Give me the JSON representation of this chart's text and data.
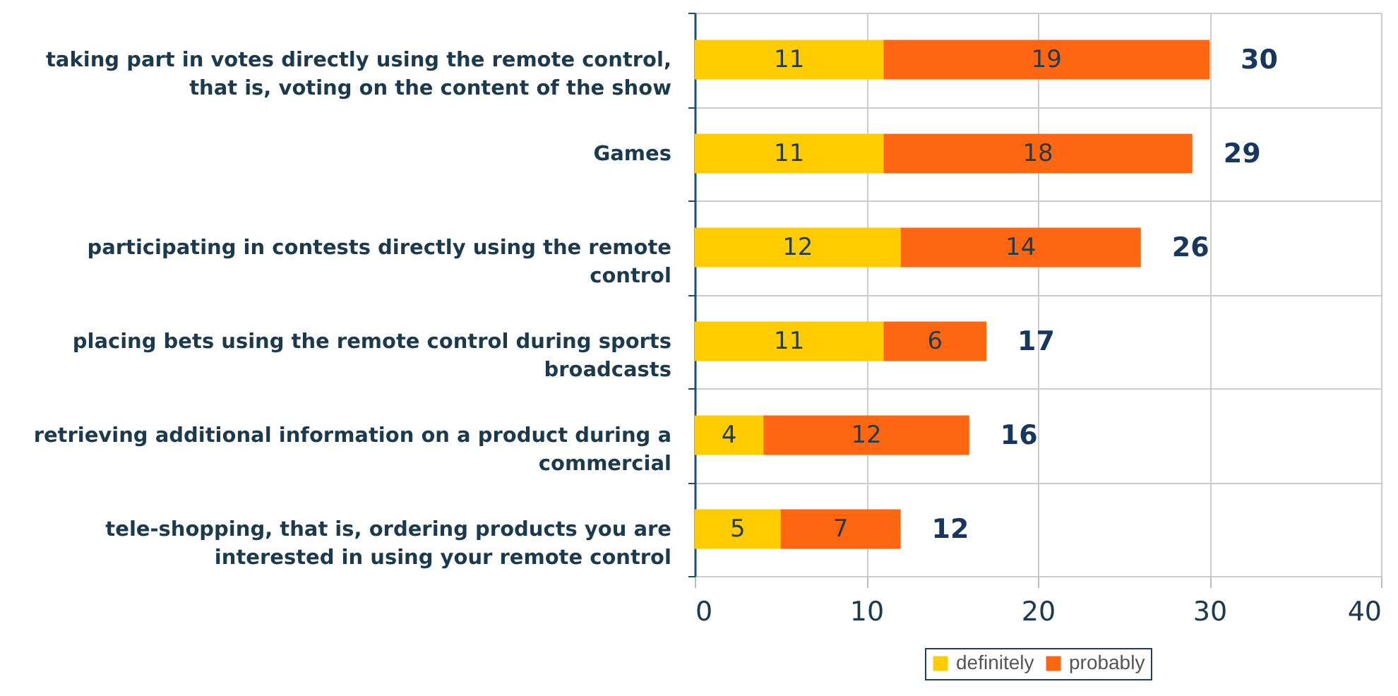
{
  "chart_data": {
    "type": "bar",
    "orientation": "horizontal",
    "stacked": true,
    "categories": [
      "taking part in votes directly using the remote control, that is, voting on the content of the show",
      "Games",
      "participating in contests directly using the remote control",
      "placing bets using the remote control during sports broadcasts",
      "retrieving additional information on a product during a commercial",
      "tele-shopping, that is, ordering products you are interested in using your remote control"
    ],
    "series": [
      {
        "name": "definitely",
        "color": "#ffcc00",
        "values": [
          11,
          11,
          12,
          11,
          4,
          5
        ]
      },
      {
        "name": "probably",
        "color": "#ff6611",
        "values": [
          19,
          18,
          14,
          6,
          12,
          7
        ]
      }
    ],
    "xlim": [
      0,
      40
    ],
    "xticks": [
      0,
      10,
      20,
      30,
      40
    ],
    "grid": true,
    "legend": "bottom",
    "data_labels": true,
    "totals": [
      "30",
      "29",
      "26",
      "17",
      "16",
      "12"
    ]
  }
}
